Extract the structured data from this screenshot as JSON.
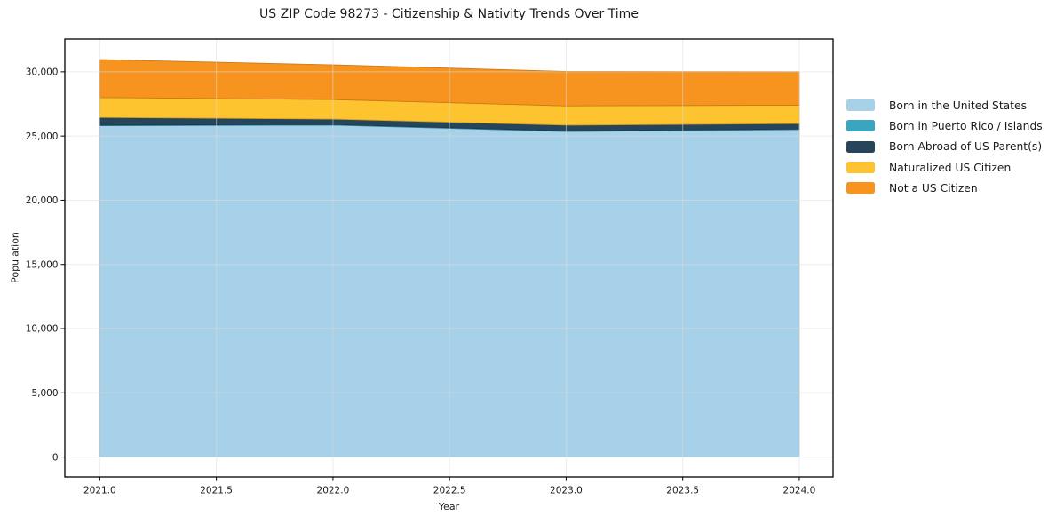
{
  "figure": {
    "background": "#ffffff"
  },
  "chart_data": {
    "type": "area",
    "stacked": true,
    "title": "US ZIP Code 98273 - Citizenship & Nativity Trends Over Time",
    "xlabel": "Year",
    "ylabel": "Population",
    "x": [
      2021,
      2022,
      2023,
      2024
    ],
    "series": [
      {
        "name": "Born in the United States",
        "color": "#a7d1e8",
        "values": [
          25800,
          25850,
          25350,
          25500
        ]
      },
      {
        "name": "Born in Puerto Rico / Islands",
        "color": "#3aa5c1",
        "values": [
          50,
          50,
          50,
          50
        ]
      },
      {
        "name": "Born Abroad of US Parent(s)",
        "color": "#27455a",
        "values": [
          600,
          420,
          450,
          420
        ]
      },
      {
        "name": "Naturalized US Citizen",
        "color": "#fdc42f",
        "values": [
          1550,
          1520,
          1500,
          1430
        ]
      },
      {
        "name": "Not a US Citizen",
        "color": "#f7941f",
        "values": [
          2950,
          2700,
          2680,
          2600
        ]
      }
    ],
    "totals": [
      30950,
      30540,
      30030,
      30000
    ],
    "xticks": {
      "values": [
        2021.0,
        2021.5,
        2022.0,
        2022.5,
        2023.0,
        2023.5,
        2024.0
      ],
      "labels": [
        "2021.0",
        "2021.5",
        "2022.0",
        "2022.5",
        "2023.0",
        "2023.5",
        "2024.0"
      ]
    },
    "yticks": {
      "values": [
        0,
        5000,
        10000,
        15000,
        20000,
        25000,
        30000
      ],
      "labels": [
        "0",
        "5,000",
        "10,000",
        "15,000",
        "20,000",
        "25,000",
        "30,000"
      ]
    },
    "xlim": [
      2020.85,
      2024.145
    ],
    "ylim": [
      -1550,
      32550
    ],
    "grid": true,
    "legend_position": "right-outside",
    "style": {
      "grid_color": "#dcdcdc",
      "spine_color": "#000000",
      "text_color": "#1a1a1a"
    }
  }
}
